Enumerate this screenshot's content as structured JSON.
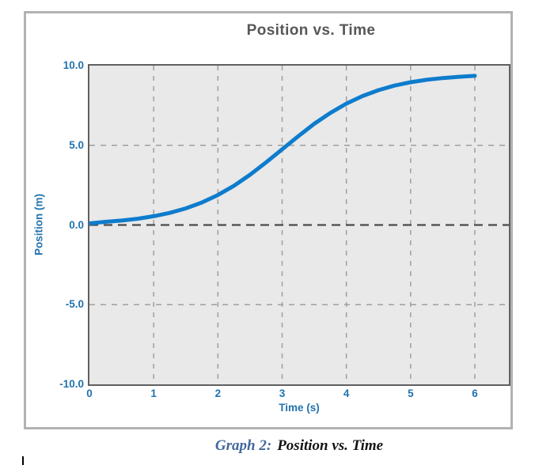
{
  "chart": {
    "title": "Position vs. Time",
    "x_axis": {
      "label": "Time (s)",
      "min": 0,
      "max": 6,
      "ticks": [
        {
          "value": 0,
          "label": "0"
        },
        {
          "value": 1,
          "label": "1"
        },
        {
          "value": 2,
          "label": "2"
        },
        {
          "value": 3,
          "label": "3"
        },
        {
          "value": 4,
          "label": "4"
        },
        {
          "value": 5,
          "label": "5"
        },
        {
          "value": 6,
          "label": "6"
        }
      ]
    },
    "y_axis": {
      "label": "Position (m)",
      "min": -10,
      "max": 10,
      "ticks": [
        {
          "value": 10,
          "label": "10.0"
        },
        {
          "value": 5,
          "label": "5.0"
        },
        {
          "value": 0,
          "label": "0.0"
        },
        {
          "value": -5,
          "label": "-5.0"
        },
        {
          "value": -10,
          "label": "-10.0"
        }
      ]
    },
    "colors": {
      "frame_border": "#b2b2b2",
      "title_color": "#575757",
      "plot_bg": "#e9e9e9",
      "plot_border": "#606060",
      "grid": "#9f9f9f",
      "zero_line": "#4a4a4a",
      "curve": "#0e7ccd",
      "axis_blue": "#2273ae",
      "caption_blue": "#44689d"
    }
  },
  "chart_data": {
    "type": "line",
    "title": "Position vs. Time",
    "xlabel": "Time (s)",
    "ylabel": "Position (m)",
    "xlim": [
      0,
      6.5
    ],
    "ylim": [
      -10,
      10
    ],
    "x_ticks": [
      0,
      1,
      2,
      3,
      4,
      5,
      6
    ],
    "y_ticks": [
      10,
      5,
      0,
      -5,
      -10
    ],
    "grid": true,
    "legend": false,
    "description": "Smooth S-shaped (logistic) position-time curve starting at 0 m, inflection near t = 3 s where it crosses 5 m, leveling off near 9.4 m by t = 6 s",
    "series": [
      {
        "name": "Position",
        "color": "#0e7ccd",
        "points": [
          [
            0,
            0.1
          ],
          [
            0.25,
            0.2
          ],
          [
            0.5,
            0.28
          ],
          [
            0.75,
            0.39
          ],
          [
            1,
            0.55
          ],
          [
            1.25,
            0.76
          ],
          [
            1.5,
            1.04
          ],
          [
            1.75,
            1.41
          ],
          [
            2,
            1.88
          ],
          [
            2.25,
            2.46
          ],
          [
            2.5,
            3.15
          ],
          [
            2.75,
            3.93
          ],
          [
            3,
            4.75
          ],
          [
            3.25,
            5.57
          ],
          [
            3.5,
            6.35
          ],
          [
            3.75,
            7.03
          ],
          [
            4,
            7.62
          ],
          [
            4.25,
            8.09
          ],
          [
            4.5,
            8.46
          ],
          [
            4.75,
            8.75
          ],
          [
            5,
            8.96
          ],
          [
            5.25,
            9.11
          ],
          [
            5.5,
            9.22
          ],
          [
            5.75,
            9.3
          ],
          [
            6,
            9.36
          ]
        ]
      }
    ]
  },
  "caption": {
    "prefix": "Graph 2:",
    "title": "Position vs. Time"
  }
}
